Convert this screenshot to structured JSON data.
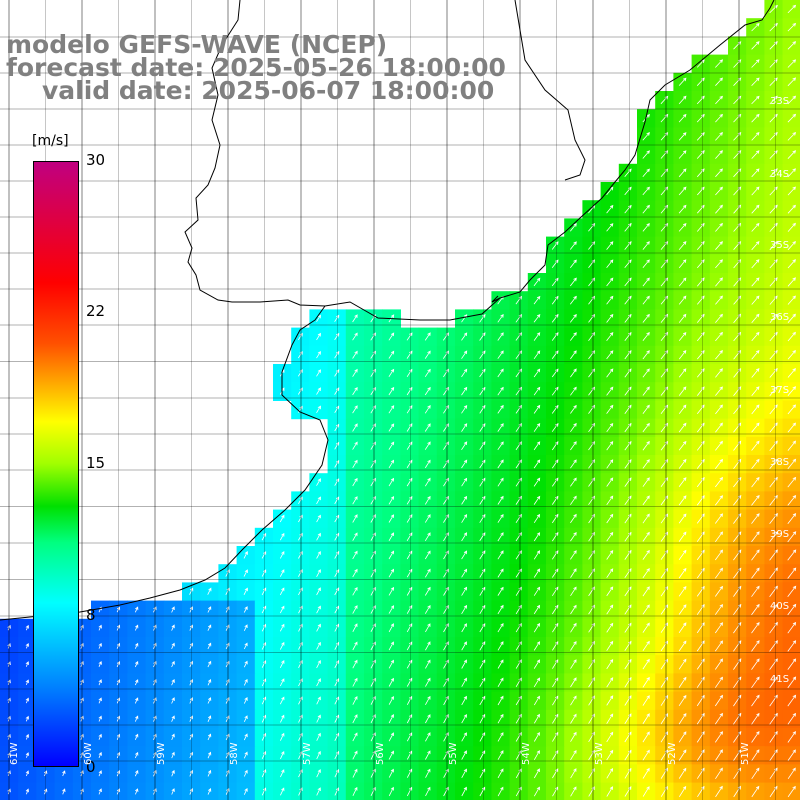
{
  "header": {
    "model": "modelo GEFS-WAVE (NCEP)",
    "forecast": "forecast date: 2025-05-26 18:00:00",
    "valid": "valid date: 2025-06-07 18:00:00"
  },
  "colorbar": {
    "unit": "[m/s]",
    "ticks": [
      "30",
      "22",
      "15",
      "8",
      "0"
    ],
    "tick_values": [
      30,
      22,
      15,
      8,
      0
    ],
    "range": [
      0,
      30
    ]
  },
  "lat_labels": [
    "33S",
    "34S",
    "35S",
    "36S",
    "37S",
    "38S",
    "39S",
    "40S",
    "41S"
  ],
  "lon_labels": [
    "61W",
    "60W",
    "59W",
    "58W",
    "57W",
    "56W",
    "55W",
    "54W",
    "53W",
    "52W",
    "51W"
  ],
  "colors": {
    "land": "#ffffff",
    "coast": "#000000",
    "grid": "#000000",
    "arrows": "#ffffff",
    "label_gray": "#808080"
  },
  "field": {
    "variable": "wind speed with direction arrows",
    "lon_range_deg": [
      -61.5,
      -50.5
    ],
    "lat_range_deg": [
      -41.5,
      -31.3
    ]
  }
}
